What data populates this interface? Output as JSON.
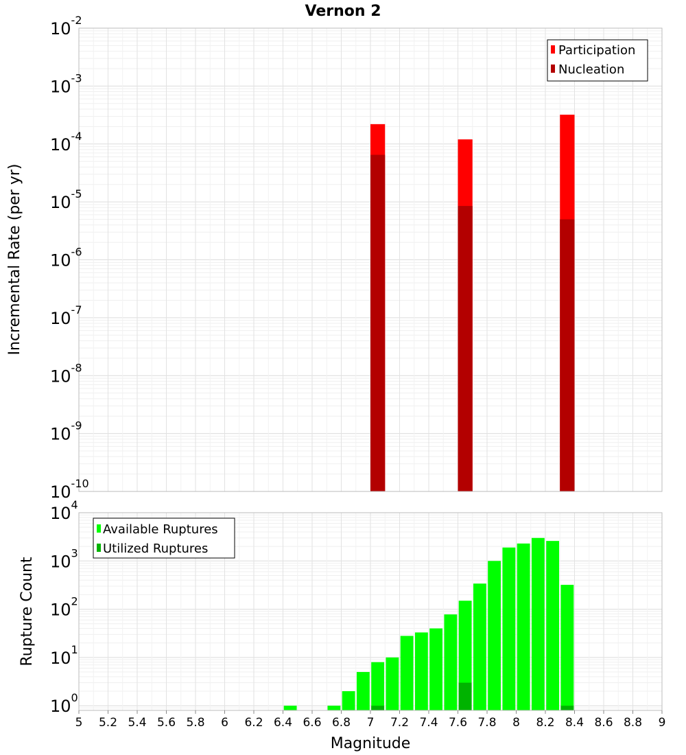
{
  "chart_data": [
    {
      "type": "bar",
      "title": "Vernon 2",
      "xlabel": "",
      "ylabel": "Incremental Rate (per yr)",
      "y_scale": "log",
      "ylim": [
        1e-10,
        0.01
      ],
      "xlim": [
        5,
        9
      ],
      "y_ticks": [
        {
          "base": "10",
          "exp": "-2",
          "value": 0.01
        },
        {
          "base": "10",
          "exp": "-3",
          "value": 0.001
        },
        {
          "base": "10",
          "exp": "-4",
          "value": 0.0001
        },
        {
          "base": "10",
          "exp": "-5",
          "value": 1e-05
        },
        {
          "base": "10",
          "exp": "-6",
          "value": 1e-06
        },
        {
          "base": "10",
          "exp": "-7",
          "value": 1e-07
        },
        {
          "base": "10",
          "exp": "-8",
          "value": 1e-08
        },
        {
          "base": "10",
          "exp": "-9",
          "value": 1e-09
        },
        {
          "base": "10",
          "exp": "-10",
          "value": 1e-10
        }
      ],
      "legend_position": "top-right",
      "series": [
        {
          "name": "Participation",
          "color": "#ff0000",
          "x": [
            7.05,
            7.65,
            8.35
          ],
          "values": [
            0.00022,
            0.00012,
            0.00032
          ]
        },
        {
          "name": "Nucleation",
          "color": "#b30000",
          "x": [
            7.05,
            7.65,
            8.35
          ],
          "values": [
            6.5e-05,
            8.5e-06,
            5e-06
          ]
        }
      ],
      "grid": true
    },
    {
      "type": "bar",
      "title": "",
      "xlabel": "Magnitude",
      "ylabel": "Rupture Count",
      "y_scale": "log",
      "ylim": [
        0.8,
        10000
      ],
      "xlim": [
        5,
        9
      ],
      "y_ticks": [
        {
          "base": "10",
          "exp": "4",
          "value": 10000
        },
        {
          "base": "10",
          "exp": "3",
          "value": 1000
        },
        {
          "base": "10",
          "exp": "2",
          "value": 100
        },
        {
          "base": "10",
          "exp": "1",
          "value": 10
        },
        {
          "base": "10",
          "exp": "0",
          "value": 1
        }
      ],
      "x_ticks": [
        "5",
        "5.2",
        "5.4",
        "5.6",
        "5.8",
        "6",
        "6.2",
        "6.4",
        "6.6",
        "6.8",
        "7",
        "7.2",
        "7.4",
        "7.6",
        "7.8",
        "8",
        "8.2",
        "8.4",
        "8.6",
        "8.8",
        "9"
      ],
      "legend_position": "top-left",
      "series": [
        {
          "name": "Available Ruptures",
          "color": "#00ff00",
          "x": [
            6.45,
            6.75,
            6.85,
            6.95,
            7.05,
            7.15,
            7.25,
            7.35,
            7.45,
            7.55,
            7.65,
            7.75,
            7.85,
            7.95,
            8.05,
            8.15,
            8.25,
            8.35
          ],
          "values": [
            1,
            1,
            2,
            5,
            8,
            10,
            28,
            33,
            40,
            78,
            150,
            340,
            1000,
            1900,
            2300,
            3000,
            2600,
            320
          ]
        },
        {
          "name": "Utilized Ruptures",
          "color": "#00b300",
          "x": [
            7.05,
            7.65,
            8.35
          ],
          "values": [
            1,
            3,
            1
          ]
        }
      ],
      "grid": true
    }
  ]
}
